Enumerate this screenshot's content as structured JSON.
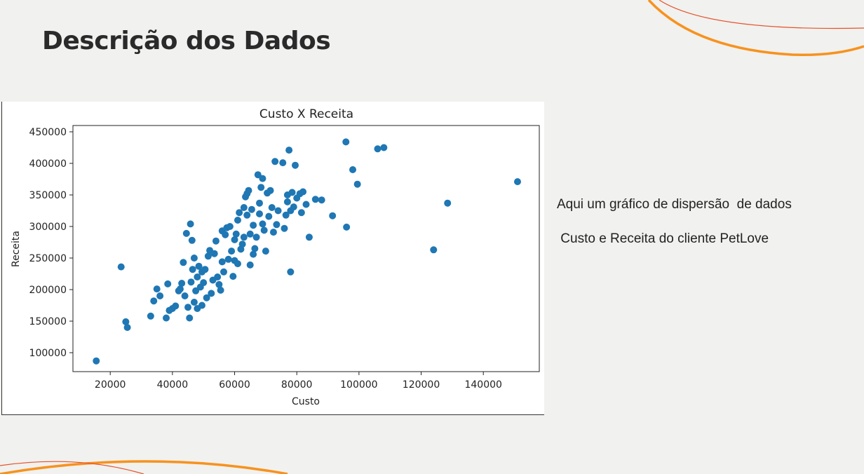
{
  "slide": {
    "title": "Descrição dos Dados",
    "description_line1": "Aqui um gráfico de dispersão  de dados",
    "description_line2": " Custo e Receita do cliente PetLove"
  },
  "colors": {
    "accent_orange": "#f7921e",
    "accent_red": "#e5532b",
    "marker_blue": "#1f77b4"
  },
  "chart_data": {
    "type": "scatter",
    "title": "Custo X Receita",
    "xlabel": "Custo",
    "ylabel": "Receita",
    "xlim": [
      8000,
      158000
    ],
    "ylim": [
      70000,
      460000
    ],
    "xticks": [
      20000,
      40000,
      60000,
      80000,
      100000,
      120000,
      140000
    ],
    "yticks": [
      100000,
      150000,
      200000,
      250000,
      300000,
      350000,
      400000,
      450000
    ],
    "grid": false,
    "points": [
      [
        15500,
        87000
      ],
      [
        23500,
        236000
      ],
      [
        25000,
        149000
      ],
      [
        25500,
        140000
      ],
      [
        33000,
        158000
      ],
      [
        34000,
        182000
      ],
      [
        35000,
        201000
      ],
      [
        36000,
        190000
      ],
      [
        38000,
        155000
      ],
      [
        38500,
        209000
      ],
      [
        39000,
        167000
      ],
      [
        40000,
        170000
      ],
      [
        41000,
        174000
      ],
      [
        42000,
        198000
      ],
      [
        42500,
        201000
      ],
      [
        43000,
        210000
      ],
      [
        43500,
        243000
      ],
      [
        44000,
        190000
      ],
      [
        44500,
        289000
      ],
      [
        45000,
        172000
      ],
      [
        45500,
        155000
      ],
      [
        45800,
        304000
      ],
      [
        46000,
        212000
      ],
      [
        46300,
        278000
      ],
      [
        46500,
        232000
      ],
      [
        47000,
        250000
      ],
      [
        47000,
        180000
      ],
      [
        47500,
        198000
      ],
      [
        48000,
        220000
      ],
      [
        48000,
        170000
      ],
      [
        48500,
        237000
      ],
      [
        49000,
        204000
      ],
      [
        49500,
        175000
      ],
      [
        49500,
        228000
      ],
      [
        50000,
        211000
      ],
      [
        50500,
        232000
      ],
      [
        51000,
        187000
      ],
      [
        51500,
        253000
      ],
      [
        52000,
        262000
      ],
      [
        52500,
        194000
      ],
      [
        53000,
        215000
      ],
      [
        53500,
        257000
      ],
      [
        54000,
        277000
      ],
      [
        54500,
        220000
      ],
      [
        55000,
        208000
      ],
      [
        55500,
        199000
      ],
      [
        56000,
        293000
      ],
      [
        56000,
        244000
      ],
      [
        56500,
        228000
      ],
      [
        57000,
        287000
      ],
      [
        57500,
        298000
      ],
      [
        58000,
        248000
      ],
      [
        58500,
        300000
      ],
      [
        59000,
        261000
      ],
      [
        59500,
        221000
      ],
      [
        60000,
        246000
      ],
      [
        60500,
        288000
      ],
      [
        60000,
        279000
      ],
      [
        61000,
        241000
      ],
      [
        61000,
        310000
      ],
      [
        61500,
        322000
      ],
      [
        62000,
        264000
      ],
      [
        62500,
        272000
      ],
      [
        63000,
        283000
      ],
      [
        63000,
        330000
      ],
      [
        63500,
        347000
      ],
      [
        64000,
        352000
      ],
      [
        64000,
        318000
      ],
      [
        64500,
        357000
      ],
      [
        65000,
        288000
      ],
      [
        65000,
        239000
      ],
      [
        65500,
        327000
      ],
      [
        66000,
        302000
      ],
      [
        66000,
        256000
      ],
      [
        66500,
        265000
      ],
      [
        67000,
        283000
      ],
      [
        67500,
        382000
      ],
      [
        68000,
        320000
      ],
      [
        68000,
        337000
      ],
      [
        68500,
        362000
      ],
      [
        69000,
        376000
      ],
      [
        69000,
        304000
      ],
      [
        69500,
        294000
      ],
      [
        70000,
        261000
      ],
      [
        70500,
        353000
      ],
      [
        71000,
        316000
      ],
      [
        71500,
        357000
      ],
      [
        72000,
        330000
      ],
      [
        72500,
        291000
      ],
      [
        73000,
        403000
      ],
      [
        73500,
        303000
      ],
      [
        74000,
        325000
      ],
      [
        75500,
        401000
      ],
      [
        76000,
        297000
      ],
      [
        76500,
        318000
      ],
      [
        77000,
        339000
      ],
      [
        77000,
        350000
      ],
      [
        77500,
        421000
      ],
      [
        78000,
        325000
      ],
      [
        78000,
        228000
      ],
      [
        78500,
        354000
      ],
      [
        79000,
        331000
      ],
      [
        79500,
        397000
      ],
      [
        80000,
        345000
      ],
      [
        81000,
        352000
      ],
      [
        81500,
        322000
      ],
      [
        82000,
        355000
      ],
      [
        83000,
        335000
      ],
      [
        84000,
        283000
      ],
      [
        86000,
        343000
      ],
      [
        88000,
        342000
      ],
      [
        91500,
        317000
      ],
      [
        95800,
        434000
      ],
      [
        96000,
        299000
      ],
      [
        98000,
        390000
      ],
      [
        99500,
        367000
      ],
      [
        106000,
        423000
      ],
      [
        108000,
        425000
      ],
      [
        124000,
        263000
      ],
      [
        128500,
        337000
      ],
      [
        151000,
        371000
      ]
    ]
  }
}
